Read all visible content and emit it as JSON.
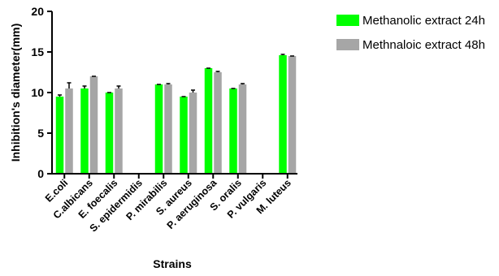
{
  "chart_data": {
    "type": "bar",
    "ylabel": "Inhibition's diameter(mm)",
    "xlabel": "Strains",
    "ylim": [
      0,
      20
    ],
    "yticks": [
      0,
      5,
      10,
      15,
      20
    ],
    "categories": [
      "E.coli",
      "C.albicans",
      "E. foecalis",
      "S. epidermidis",
      "P. mirabilis",
      "S. aureus",
      "P. aeruginosa",
      "S. oralis",
      "P. vulgaris",
      "M. luteus"
    ],
    "series": [
      {
        "name": "Methanolic extract 24h",
        "color": "#00ff00",
        "values": [
          9.5,
          10.5,
          10,
          0,
          11,
          9.5,
          13,
          10.5,
          0,
          14.6
        ],
        "errors": [
          0.2,
          0.3,
          0,
          0,
          0,
          0,
          0,
          0,
          0,
          0.1
        ]
      },
      {
        "name": "Methnaloic extract 48h",
        "color": "#a6a6a6",
        "values": [
          10.5,
          12,
          10.5,
          0,
          11,
          10,
          12.5,
          11,
          0,
          14.5
        ],
        "errors": [
          0.7,
          0,
          0.3,
          0,
          0.1,
          0.3,
          0.1,
          0.1,
          0,
          0
        ]
      }
    ],
    "legend_position": "top-right",
    "grid": false
  }
}
